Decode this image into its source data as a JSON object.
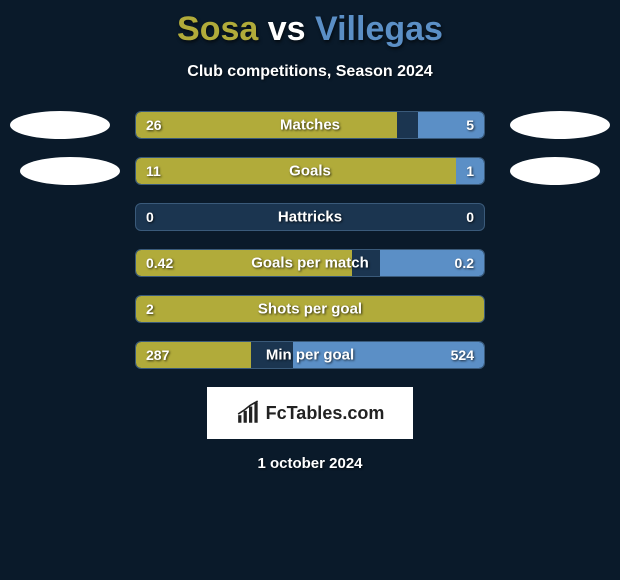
{
  "title_left": "Sosa",
  "title_vs": "vs",
  "title_right": "Villegas",
  "title_color_left": "#b1ab3a",
  "title_color_vs": "#ffffff",
  "title_color_right": "#5b8fc6",
  "subtitle": "Club competitions, Season 2024",
  "left_bar_color": "#b1ab3a",
  "right_bar_color": "#5b8fc6",
  "bar_bg_color": "#1b3550",
  "metrics": [
    {
      "label": "Matches",
      "left_val": "26",
      "right_val": "5",
      "left_pct": 75,
      "right_pct": 19
    },
    {
      "label": "Goals",
      "left_val": "11",
      "right_val": "1",
      "left_pct": 92,
      "right_pct": 8
    },
    {
      "label": "Hattricks",
      "left_val": "0",
      "right_val": "0",
      "left_pct": 0,
      "right_pct": 0
    },
    {
      "label": "Goals per match",
      "left_val": "0.42",
      "right_val": "0.2",
      "left_pct": 62,
      "right_pct": 30
    },
    {
      "label": "Shots per goal",
      "left_val": "2",
      "right_val": "",
      "left_pct": 100,
      "right_pct": 0
    },
    {
      "label": "Min per goal",
      "left_val": "287",
      "right_val": "524",
      "left_pct": 33,
      "right_pct": 55
    }
  ],
  "logo_text": "FcTables.com",
  "date": "1 october 2024"
}
